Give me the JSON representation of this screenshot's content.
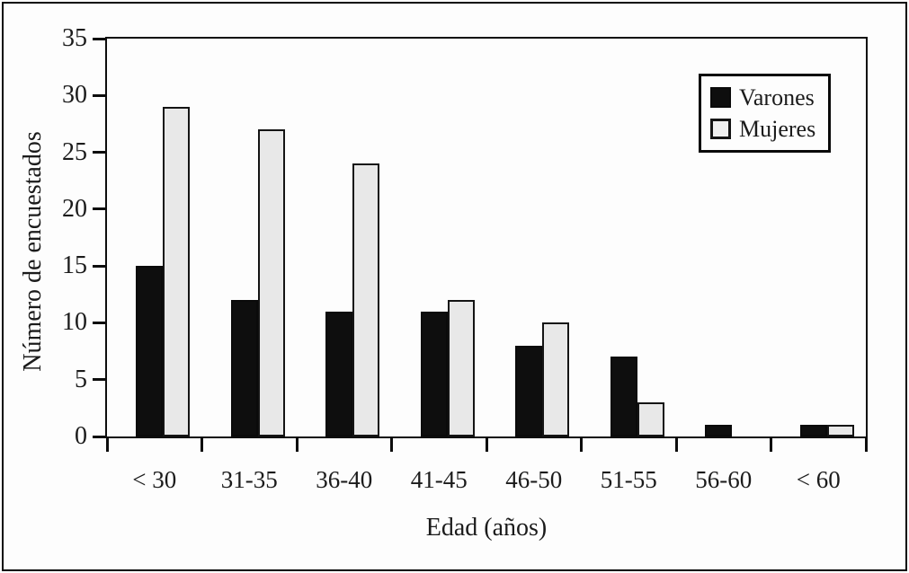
{
  "chart_data": {
    "type": "bar",
    "title": "",
    "categories": [
      "< 30",
      "31-35",
      "36-40",
      "41-45",
      "46-50",
      "51-55",
      "56-60",
      "< 60"
    ],
    "series": [
      {
        "name": "Varones",
        "color": "#0e0e0e",
        "values": [
          15,
          12,
          11,
          11,
          8,
          7,
          1,
          1
        ]
      },
      {
        "name": "Mujeres",
        "color": "#e8e8e8",
        "values": [
          29,
          27,
          24,
          12,
          10,
          3,
          0,
          1
        ]
      }
    ],
    "xlabel": "Edad (años)",
    "ylabel": "Número de encuestados",
    "ylim": [
      0,
      35
    ],
    "ytick_step": 5,
    "yticks": [
      0,
      5,
      10,
      15,
      20,
      25,
      30,
      35
    ],
    "legend_position": "top-right",
    "grid": false,
    "bar_border_color": "#0a0a0a",
    "axis_color": "#0d0d0d",
    "background_color": "#fdfdfd"
  }
}
